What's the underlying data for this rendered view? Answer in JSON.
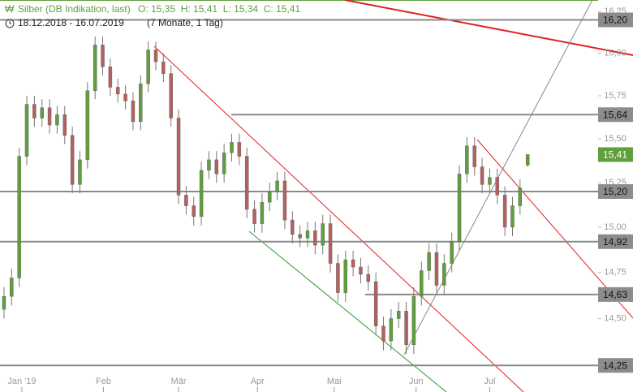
{
  "chart_data": {
    "type": "candlestick",
    "title": "Silber (DB Indikation, last)",
    "ohlc_label": "O: 15,35  H: 15,41  L: 15,34  C: 15,41",
    "subtitle": "18.12.2018 - 16.07.2019",
    "span": "(7 Monate, 1 Tag)",
    "log_scale": true,
    "up_color": "#5f9f3c",
    "down_color": "#b4605e",
    "open": [
      14.55,
      14.62,
      14.72,
      15.4,
      15.7,
      15.62,
      15.68,
      15.58,
      15.64,
      15.52,
      15.24,
      15.38,
      15.78,
      16.05,
      15.92,
      15.8,
      15.76,
      15.72,
      15.6,
      15.82,
      16.02,
      15.95,
      15.88,
      15.62,
      15.18,
      15.12,
      15.06,
      15.32,
      15.38,
      15.3,
      15.42,
      15.48,
      15.4,
      15.1,
      15.02,
      15.14,
      15.2,
      15.26,
      15.04,
      14.96,
      14.94,
      14.98,
      14.9,
      15.02,
      14.8,
      14.64,
      14.82,
      14.78,
      14.74,
      14.7,
      14.46,
      14.38,
      14.5,
      14.54,
      14.36,
      14.62,
      14.76,
      14.86,
      14.68,
      14.8,
      14.92,
      15.3,
      15.46,
      15.34,
      15.24,
      15.28,
      15.18,
      15.0,
      15.12,
      15.35
    ],
    "high": [
      14.67,
      14.77,
      15.45,
      15.75,
      15.75,
      15.73,
      15.73,
      15.69,
      15.69,
      15.57,
      15.43,
      15.83,
      16.1,
      16.1,
      15.97,
      15.85,
      15.81,
      15.77,
      15.87,
      16.07,
      16.07,
      16.0,
      15.93,
      15.67,
      15.23,
      15.17,
      15.37,
      15.43,
      15.43,
      15.47,
      15.53,
      15.53,
      15.45,
      15.15,
      15.19,
      15.25,
      15.31,
      15.31,
      15.09,
      15.01,
      15.03,
      15.03,
      15.07,
      15.07,
      14.85,
      14.87,
      14.87,
      14.83,
      14.79,
      14.75,
      14.51,
      14.55,
      14.59,
      14.59,
      14.67,
      14.81,
      14.91,
      14.91,
      14.85,
      14.97,
      15.35,
      15.51,
      15.51,
      15.39,
      15.33,
      15.33,
      15.23,
      15.17,
      15.27,
      15.41
    ],
    "low": [
      14.5,
      14.57,
      14.67,
      15.35,
      15.57,
      15.57,
      15.53,
      15.53,
      15.47,
      15.19,
      15.19,
      15.33,
      15.73,
      15.87,
      15.75,
      15.71,
      15.67,
      15.55,
      15.55,
      15.77,
      15.9,
      15.83,
      15.57,
      15.13,
      15.07,
      15.01,
      15.01,
      15.27,
      15.25,
      15.25,
      15.37,
      15.35,
      15.05,
      14.97,
      14.97,
      15.09,
      15.15,
      14.99,
      14.91,
      14.89,
      14.89,
      14.85,
      14.85,
      14.75,
      14.59,
      14.59,
      14.73,
      14.69,
      14.65,
      14.41,
      14.33,
      14.33,
      14.45,
      14.31,
      14.31,
      14.57,
      14.71,
      14.63,
      14.63,
      14.75,
      14.87,
      15.25,
      15.29,
      15.19,
      15.19,
      15.13,
      14.95,
      14.95,
      15.07,
      15.34
    ],
    "close": [
      14.62,
      14.72,
      15.4,
      15.7,
      15.62,
      15.68,
      15.58,
      15.64,
      15.52,
      15.24,
      15.38,
      15.78,
      16.05,
      15.92,
      15.8,
      15.76,
      15.72,
      15.6,
      15.82,
      16.02,
      15.95,
      15.88,
      15.62,
      15.18,
      15.12,
      15.06,
      15.32,
      15.38,
      15.3,
      15.42,
      15.48,
      15.4,
      15.1,
      15.02,
      15.14,
      15.2,
      15.26,
      15.04,
      14.96,
      14.94,
      14.98,
      14.9,
      15.02,
      14.8,
      14.64,
      14.82,
      14.78,
      14.74,
      14.7,
      14.46,
      14.38,
      14.5,
      14.54,
      14.36,
      14.62,
      14.76,
      14.86,
      14.68,
      14.8,
      14.92,
      15.3,
      15.46,
      15.34,
      15.24,
      15.28,
      15.18,
      15.0,
      15.12,
      15.22,
      15.41
    ],
    "xlim": [
      -0.53,
      78.07
    ],
    "xticks": [
      {
        "value": 2.35,
        "label": "Jan '19"
      },
      {
        "value": 13.1,
        "label": "Feb"
      },
      {
        "value": 23.0,
        "label": "Mär"
      },
      {
        "value": 33.4,
        "label": "Apr"
      },
      {
        "value": 43.5,
        "label": "Mai"
      },
      {
        "value": 54.3,
        "label": "Jun"
      },
      {
        "value": 64.0,
        "label": "Jul"
      }
    ],
    "ylim": [
      14.11,
      16.32
    ],
    "yticks": [
      {
        "value": 14.5,
        "label": "14,50"
      },
      {
        "value": 14.75,
        "label": "14,75"
      },
      {
        "value": 15.0,
        "label": "15,00"
      },
      {
        "value": 15.25,
        "label": "15,25"
      },
      {
        "value": 15.5,
        "label": "15,50"
      },
      {
        "value": 15.75,
        "label": "15,75"
      },
      {
        "value": 16.0,
        "label": "16,00"
      },
      {
        "value": 16.25,
        "label": "16,25"
      }
    ],
    "levels": [
      {
        "value": 16.2,
        "label": "16,20"
      },
      {
        "value": 15.64,
        "label": "15,64"
      },
      {
        "value": 15.2,
        "label": "15,20"
      },
      {
        "value": 14.92,
        "label": "14,92"
      },
      {
        "value": 14.63,
        "label": "14,63"
      },
      {
        "value": 14.25,
        "label": "14,25"
      }
    ],
    "last": {
      "value": 15.41,
      "label": "15,41"
    }
  }
}
